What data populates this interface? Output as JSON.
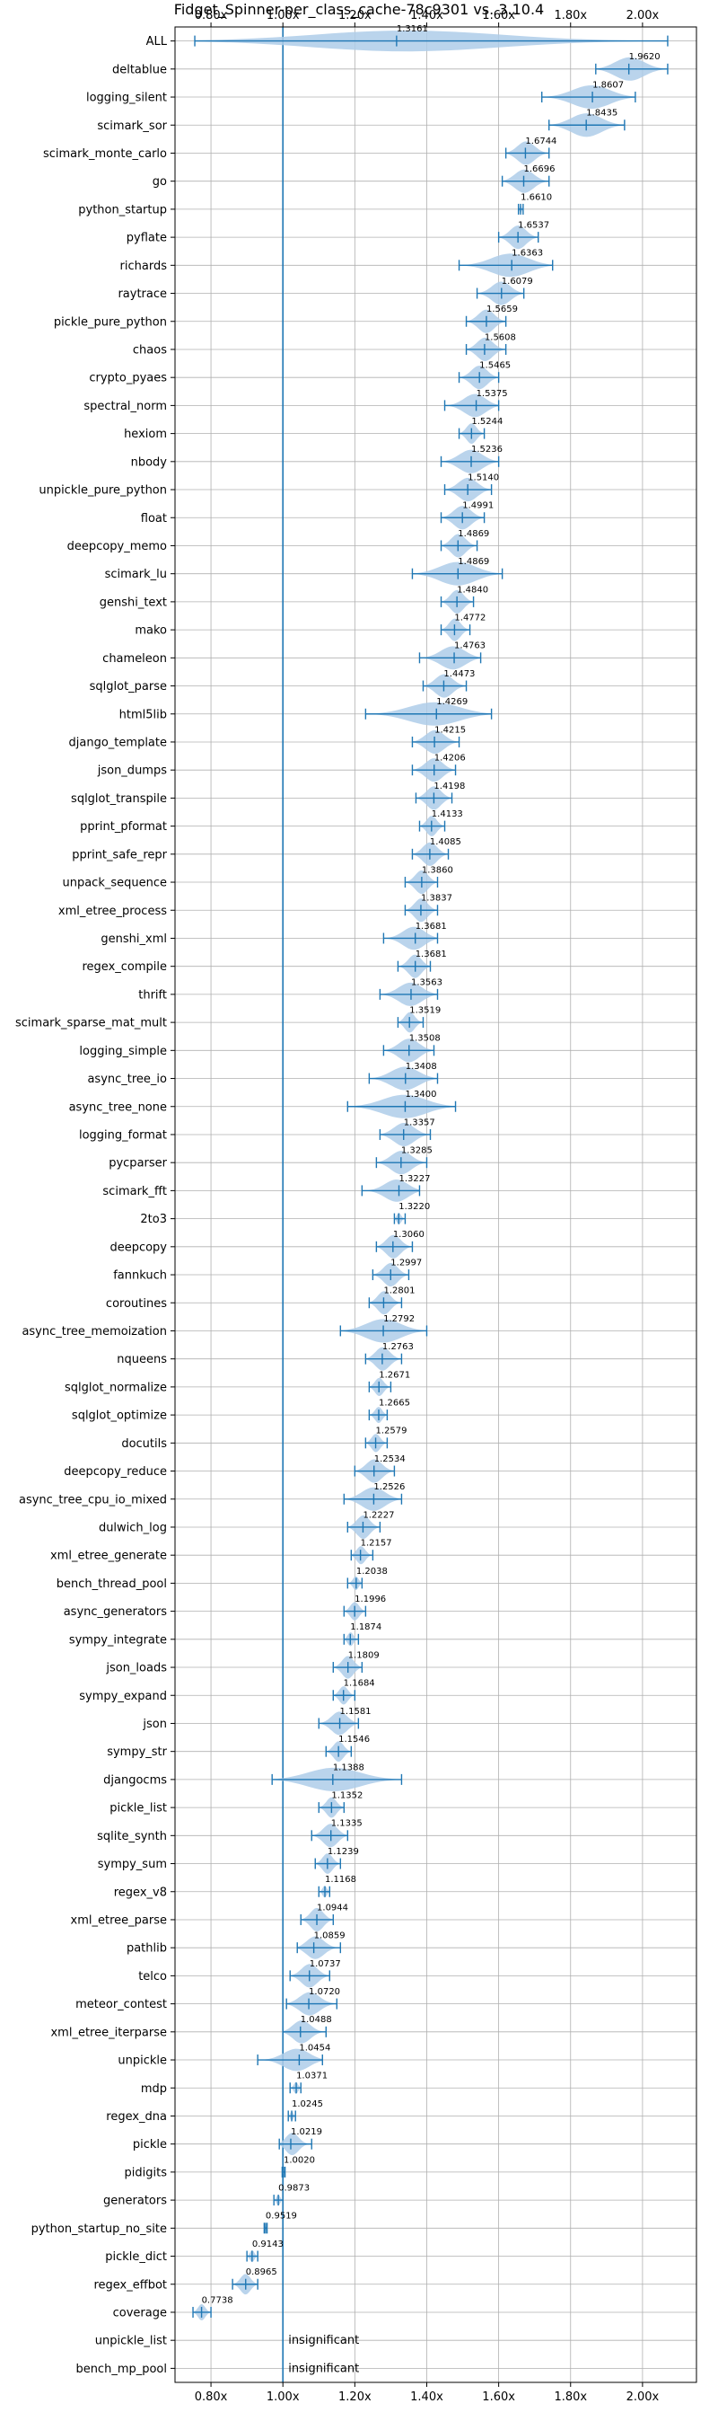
{
  "chart_data": {
    "type": "violin",
    "title": "Fidget_Spinner-per_class_cache-78c9301 vs. 3.10.4",
    "xlim": [
      0.7,
      2.15
    ],
    "x_ticks": [
      0.8,
      1.0,
      1.2,
      1.4,
      1.6,
      1.8,
      2.0
    ],
    "x_tick_labels": [
      "0.80x",
      "1.00x",
      "1.20x",
      "1.40x",
      "1.60x",
      "1.80x",
      "2.00x"
    ],
    "reference_line": 1.0,
    "grid": true,
    "colors": {
      "violin": "#aecde9",
      "line": "#1f77b4",
      "ref": "#1f77b4"
    },
    "insignificant_label": "insignificant",
    "benchmarks": [
      {
        "name": "ALL",
        "median": 1.3161,
        "label": "1.3161",
        "min": 0.755,
        "max": 2.07
      },
      {
        "name": "deltablue",
        "median": 1.962,
        "label": "1.9620",
        "min": 1.87,
        "max": 2.07
      },
      {
        "name": "logging_silent",
        "median": 1.8607,
        "label": "1.8607",
        "min": 1.72,
        "max": 1.98
      },
      {
        "name": "scimark_sor",
        "median": 1.8435,
        "label": "1.8435",
        "min": 1.74,
        "max": 1.95
      },
      {
        "name": "scimark_monte_carlo",
        "median": 1.6744,
        "label": "1.6744",
        "min": 1.62,
        "max": 1.74
      },
      {
        "name": "go",
        "median": 1.6696,
        "label": "1.6696",
        "min": 1.61,
        "max": 1.74
      },
      {
        "name": "python_startup",
        "median": 1.661,
        "label": "1.6610",
        "min": 1.655,
        "max": 1.668
      },
      {
        "name": "pyflate",
        "median": 1.6537,
        "label": "1.6537",
        "min": 1.6,
        "max": 1.71
      },
      {
        "name": "richards",
        "median": 1.6363,
        "label": "1.6363",
        "min": 1.49,
        "max": 1.75
      },
      {
        "name": "raytrace",
        "median": 1.6079,
        "label": "1.6079",
        "min": 1.54,
        "max": 1.67
      },
      {
        "name": "pickle_pure_python",
        "median": 1.5659,
        "label": "1.5659",
        "min": 1.51,
        "max": 1.62
      },
      {
        "name": "chaos",
        "median": 1.5608,
        "label": "1.5608",
        "min": 1.51,
        "max": 1.62
      },
      {
        "name": "crypto_pyaes",
        "median": 1.5465,
        "label": "1.5465",
        "min": 1.49,
        "max": 1.6
      },
      {
        "name": "spectral_norm",
        "median": 1.5375,
        "label": "1.5375",
        "min": 1.45,
        "max": 1.6
      },
      {
        "name": "hexiom",
        "median": 1.5244,
        "label": "1.5244",
        "min": 1.49,
        "max": 1.56
      },
      {
        "name": "nbody",
        "median": 1.5236,
        "label": "1.5236",
        "min": 1.44,
        "max": 1.6
      },
      {
        "name": "unpickle_pure_python",
        "median": 1.514,
        "label": "1.5140",
        "min": 1.45,
        "max": 1.58
      },
      {
        "name": "float",
        "median": 1.4991,
        "label": "1.4991",
        "min": 1.44,
        "max": 1.56
      },
      {
        "name": "deepcopy_memo",
        "median": 1.4869,
        "label": "1.4869",
        "min": 1.44,
        "max": 1.54
      },
      {
        "name": "scimark_lu",
        "median": 1.4869,
        "label": "1.4869",
        "min": 1.36,
        "max": 1.61
      },
      {
        "name": "genshi_text",
        "median": 1.484,
        "label": "1.4840",
        "min": 1.44,
        "max": 1.53
      },
      {
        "name": "mako",
        "median": 1.4772,
        "label": "1.4772",
        "min": 1.44,
        "max": 1.52
      },
      {
        "name": "chameleon",
        "median": 1.4763,
        "label": "1.4763",
        "min": 1.38,
        "max": 1.55
      },
      {
        "name": "sqlglot_parse",
        "median": 1.4473,
        "label": "1.4473",
        "min": 1.39,
        "max": 1.51
      },
      {
        "name": "html5lib",
        "median": 1.4269,
        "label": "1.4269",
        "min": 1.23,
        "max": 1.58
      },
      {
        "name": "django_template",
        "median": 1.4215,
        "label": "1.4215",
        "min": 1.36,
        "max": 1.49
      },
      {
        "name": "json_dumps",
        "median": 1.4206,
        "label": "1.4206",
        "min": 1.36,
        "max": 1.48
      },
      {
        "name": "sqlglot_transpile",
        "median": 1.4198,
        "label": "1.4198",
        "min": 1.37,
        "max": 1.47
      },
      {
        "name": "pprint_pformat",
        "median": 1.4133,
        "label": "1.4133",
        "min": 1.38,
        "max": 1.45
      },
      {
        "name": "pprint_safe_repr",
        "median": 1.4085,
        "label": "1.4085",
        "min": 1.36,
        "max": 1.46
      },
      {
        "name": "unpack_sequence",
        "median": 1.386,
        "label": "1.3860",
        "min": 1.34,
        "max": 1.43
      },
      {
        "name": "xml_etree_process",
        "median": 1.3837,
        "label": "1.3837",
        "min": 1.34,
        "max": 1.43
      },
      {
        "name": "genshi_xml",
        "median": 1.3681,
        "label": "1.3681",
        "min": 1.28,
        "max": 1.43
      },
      {
        "name": "regex_compile",
        "median": 1.3681,
        "label": "1.3681",
        "min": 1.32,
        "max": 1.41
      },
      {
        "name": "thrift",
        "median": 1.3563,
        "label": "1.3563",
        "min": 1.27,
        "max": 1.43
      },
      {
        "name": "scimark_sparse_mat_mult",
        "median": 1.3519,
        "label": "1.3519",
        "min": 1.32,
        "max": 1.39
      },
      {
        "name": "logging_simple",
        "median": 1.3508,
        "label": "1.3508",
        "min": 1.28,
        "max": 1.42
      },
      {
        "name": "async_tree_io",
        "median": 1.3408,
        "label": "1.3408",
        "min": 1.24,
        "max": 1.43
      },
      {
        "name": "async_tree_none",
        "median": 1.34,
        "label": "1.3400",
        "min": 1.18,
        "max": 1.48
      },
      {
        "name": "logging_format",
        "median": 1.3357,
        "label": "1.3357",
        "min": 1.27,
        "max": 1.41
      },
      {
        "name": "pycparser",
        "median": 1.3285,
        "label": "1.3285",
        "min": 1.26,
        "max": 1.4
      },
      {
        "name": "scimark_fft",
        "median": 1.3227,
        "label": "1.3227",
        "min": 1.22,
        "max": 1.38
      },
      {
        "name": "2to3",
        "median": 1.322,
        "label": "1.3220",
        "min": 1.31,
        "max": 1.34
      },
      {
        "name": "deepcopy",
        "median": 1.306,
        "label": "1.3060",
        "min": 1.26,
        "max": 1.36
      },
      {
        "name": "fannkuch",
        "median": 1.2997,
        "label": "1.2997",
        "min": 1.25,
        "max": 1.35
      },
      {
        "name": "coroutines",
        "median": 1.2801,
        "label": "1.2801",
        "min": 1.24,
        "max": 1.33
      },
      {
        "name": "async_tree_memoization",
        "median": 1.2792,
        "label": "1.2792",
        "min": 1.16,
        "max": 1.4
      },
      {
        "name": "nqueens",
        "median": 1.2763,
        "label": "1.2763",
        "min": 1.23,
        "max": 1.33
      },
      {
        "name": "sqlglot_normalize",
        "median": 1.2671,
        "label": "1.2671",
        "min": 1.24,
        "max": 1.3
      },
      {
        "name": "sqlglot_optimize",
        "median": 1.2665,
        "label": "1.2665",
        "min": 1.24,
        "max": 1.29
      },
      {
        "name": "docutils",
        "median": 1.2579,
        "label": "1.2579",
        "min": 1.23,
        "max": 1.29
      },
      {
        "name": "deepcopy_reduce",
        "median": 1.2534,
        "label": "1.2534",
        "min": 1.2,
        "max": 1.31
      },
      {
        "name": "async_tree_cpu_io_mixed",
        "median": 1.2526,
        "label": "1.2526",
        "min": 1.17,
        "max": 1.33
      },
      {
        "name": "dulwich_log",
        "median": 1.2227,
        "label": "1.2227",
        "min": 1.18,
        "max": 1.27
      },
      {
        "name": "xml_etree_generate",
        "median": 1.2157,
        "label": "1.2157",
        "min": 1.19,
        "max": 1.25
      },
      {
        "name": "bench_thread_pool",
        "median": 1.2038,
        "label": "1.2038",
        "min": 1.18,
        "max": 1.22
      },
      {
        "name": "async_generators",
        "median": 1.1996,
        "label": "1.1996",
        "min": 1.17,
        "max": 1.23
      },
      {
        "name": "sympy_integrate",
        "median": 1.1874,
        "label": "1.1874",
        "min": 1.17,
        "max": 1.21
      },
      {
        "name": "json_loads",
        "median": 1.1809,
        "label": "1.1809",
        "min": 1.14,
        "max": 1.22
      },
      {
        "name": "sympy_expand",
        "median": 1.1684,
        "label": "1.1684",
        "min": 1.14,
        "max": 1.2
      },
      {
        "name": "json",
        "median": 1.1581,
        "label": "1.1581",
        "min": 1.1,
        "max": 1.21
      },
      {
        "name": "sympy_str",
        "median": 1.1546,
        "label": "1.1546",
        "min": 1.12,
        "max": 1.19
      },
      {
        "name": "djangocms",
        "median": 1.1388,
        "label": "1.1388",
        "min": 0.97,
        "max": 1.33
      },
      {
        "name": "pickle_list",
        "median": 1.1352,
        "label": "1.1352",
        "min": 1.1,
        "max": 1.17
      },
      {
        "name": "sqlite_synth",
        "median": 1.1335,
        "label": "1.1335",
        "min": 1.08,
        "max": 1.18
      },
      {
        "name": "sympy_sum",
        "median": 1.1239,
        "label": "1.1239",
        "min": 1.09,
        "max": 1.16
      },
      {
        "name": "regex_v8",
        "median": 1.1168,
        "label": "1.1168",
        "min": 1.1,
        "max": 1.13
      },
      {
        "name": "xml_etree_parse",
        "median": 1.0944,
        "label": "1.0944",
        "min": 1.05,
        "max": 1.14
      },
      {
        "name": "pathlib",
        "median": 1.0859,
        "label": "1.0859",
        "min": 1.04,
        "max": 1.16
      },
      {
        "name": "telco",
        "median": 1.0737,
        "label": "1.0737",
        "min": 1.02,
        "max": 1.13
      },
      {
        "name": "meteor_contest",
        "median": 1.072,
        "label": "1.0720",
        "min": 1.01,
        "max": 1.15
      },
      {
        "name": "xml_etree_iterparse",
        "median": 1.0488,
        "label": "1.0488",
        "min": 1.0,
        "max": 1.12
      },
      {
        "name": "unpickle",
        "median": 1.0454,
        "label": "1.0454",
        "min": 0.93,
        "max": 1.11
      },
      {
        "name": "mdp",
        "median": 1.0371,
        "label": "1.0371",
        "min": 1.02,
        "max": 1.05
      },
      {
        "name": "regex_dna",
        "median": 1.0245,
        "label": "1.0245",
        "min": 1.015,
        "max": 1.035
      },
      {
        "name": "pickle",
        "median": 1.0219,
        "label": "1.0219",
        "min": 0.99,
        "max": 1.08
      },
      {
        "name": "pidigits",
        "median": 1.002,
        "label": "1.0020",
        "min": 0.998,
        "max": 1.006
      },
      {
        "name": "generators",
        "median": 0.9873,
        "label": "0.9873",
        "min": 0.975,
        "max": 1.0
      },
      {
        "name": "python_startup_no_site",
        "median": 0.9519,
        "label": "0.9519",
        "min": 0.948,
        "max": 0.956
      },
      {
        "name": "pickle_dict",
        "median": 0.9143,
        "label": "0.9143",
        "min": 0.9,
        "max": 0.93
      },
      {
        "name": "regex_effbot",
        "median": 0.8965,
        "label": "0.8965",
        "min": 0.86,
        "max": 0.93
      },
      {
        "name": "coverage",
        "median": 0.7738,
        "label": "0.7738",
        "min": 0.75,
        "max": 0.8
      },
      {
        "name": "unpickle_list",
        "insignificant": true
      },
      {
        "name": "bench_mp_pool",
        "insignificant": true
      }
    ]
  }
}
